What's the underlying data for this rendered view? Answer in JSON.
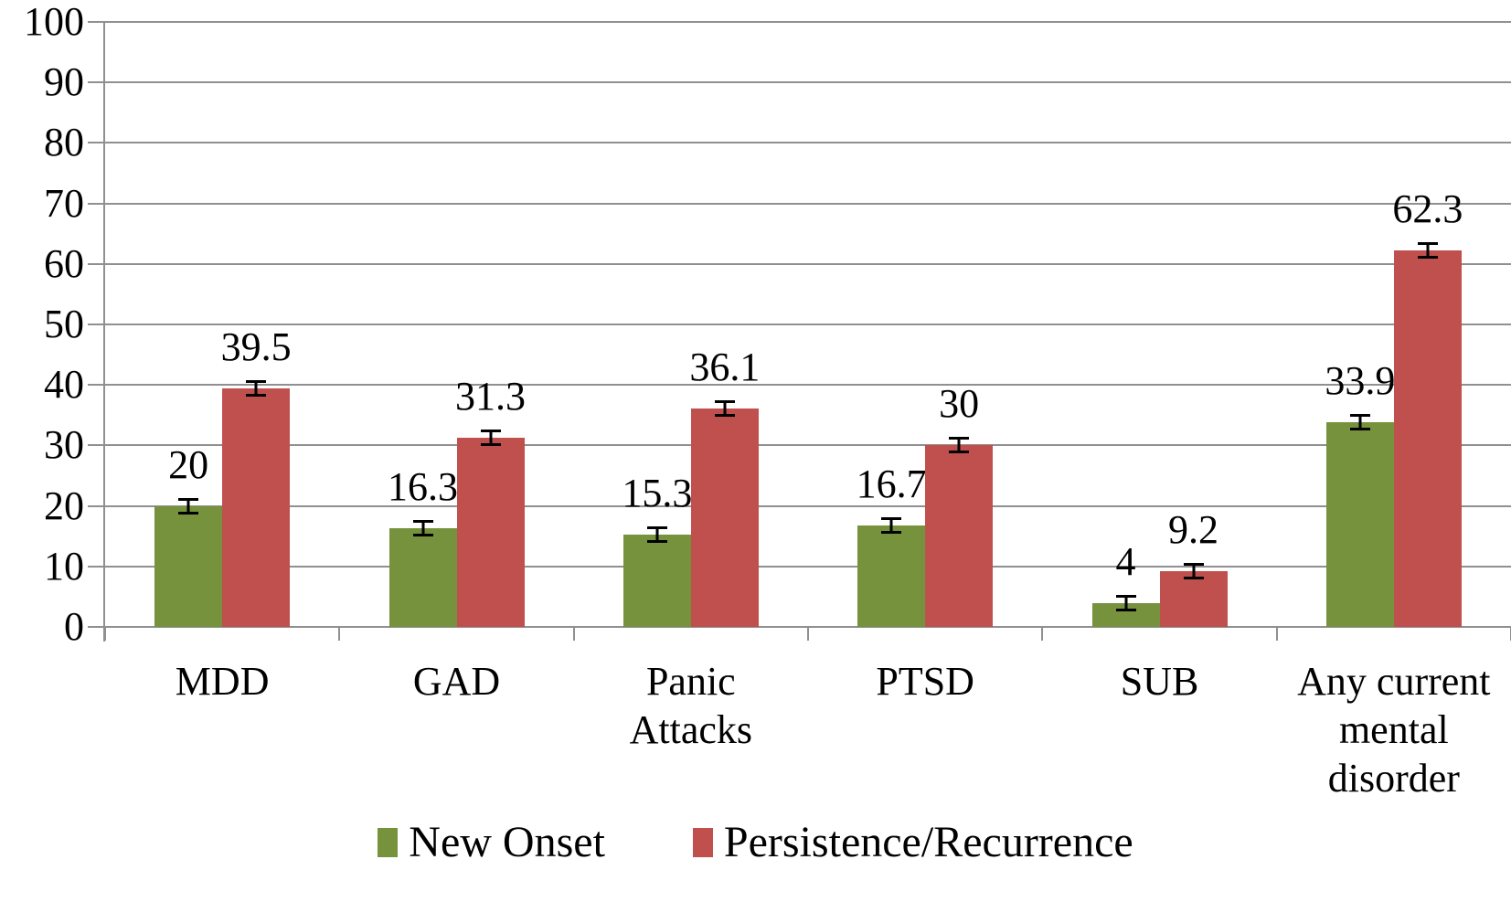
{
  "chart_data": {
    "type": "bar",
    "title": "",
    "categories": [
      "MDD",
      "GAD",
      "Panic\nAttacks",
      "PTSD",
      "SUB",
      "Any current\nmental\ndisorder"
    ],
    "series": [
      {
        "name": "New Onset",
        "color": "#76923C",
        "values": [
          20,
          16.3,
          15.3,
          16.7,
          4,
          33.9
        ],
        "value_labels": [
          "20",
          "16.3",
          "15.3",
          "16.7",
          "4",
          "33.9"
        ]
      },
      {
        "name": "Persistence/Recurrence",
        "color": "#C0504D",
        "values": [
          39.5,
          31.3,
          36.1,
          30,
          9.2,
          62.3
        ],
        "value_labels": [
          "39.5",
          "31.3",
          "36.1",
          "30",
          "9.2",
          "62.3"
        ]
      }
    ],
    "error_bars": {
      "shown": true,
      "approx_half_width_units": 1.0
    },
    "y_axis": {
      "min": 0,
      "max": 100,
      "tick_step": 10,
      "tick_labels": [
        "0",
        "10",
        "20",
        "30",
        "40",
        "50",
        "60",
        "70",
        "80",
        "90",
        "100"
      ]
    },
    "x_axis": {
      "label": ""
    },
    "grid": true,
    "legend_position": "bottom"
  },
  "colors": {
    "new_onset": "#76923C",
    "persistence_recurrence": "#C0504D",
    "gridline": "#909090",
    "text": "#000000",
    "background": "#FFFFFF"
  },
  "legend": {
    "items": [
      {
        "label": "New Onset"
      },
      {
        "label": "Persistence/Recurrence"
      }
    ]
  }
}
